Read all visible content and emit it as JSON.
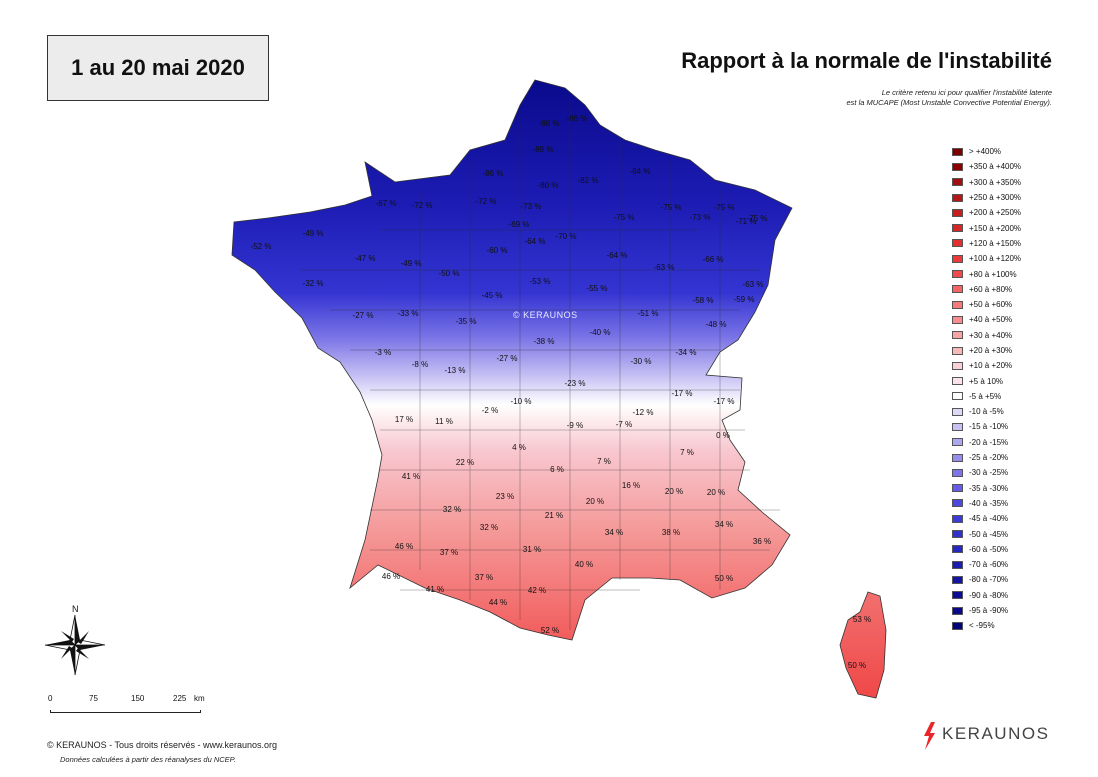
{
  "period_label": "1 au 20 mai 2020",
  "title": "Rapport à la normale de l'instabilité",
  "subtitle_line1": "Le critère retenu ici pour qualifier l'instabilité latente",
  "subtitle_line2": "est la MUCAPE (Most Unstable Convective Potential Energy).",
  "watermark": "© KERAUNOS",
  "legend": [
    {
      "label": "> +400%",
      "color": "#7a0000"
    },
    {
      "label": "+350 à +400%",
      "color": "#8e0000"
    },
    {
      "label": "+300 à +350%",
      "color": "#a30d0d"
    },
    {
      "label": "+250 à +300%",
      "color": "#b51616"
    },
    {
      "label": "+200 à +250%",
      "color": "#c41e1e"
    },
    {
      "label": "+150 à +200%",
      "color": "#d42828"
    },
    {
      "label": "+120 à +150%",
      "color": "#e03030"
    },
    {
      "label": "+100 à +120%",
      "color": "#ea3a3a"
    },
    {
      "label": "+80 à +100%",
      "color": "#f14a4a"
    },
    {
      "label": "+60 à +80%",
      "color": "#f56464"
    },
    {
      "label": "+50 à +60%",
      "color": "#f77a7a"
    },
    {
      "label": "+40 à +50%",
      "color": "#f88d8d"
    },
    {
      "label": "+30 à +40%",
      "color": "#f8a4a4"
    },
    {
      "label": "+20 à +30%",
      "color": "#f8b8b8"
    },
    {
      "label": "+10 à +20%",
      "color": "#fad0d8"
    },
    {
      "label": "+5 à 10%",
      "color": "#fbe2ec"
    },
    {
      "label": "-5 à +5%",
      "color": "#ffffff"
    },
    {
      "label": "-10 à -5%",
      "color": "#dcd8f8"
    },
    {
      "label": "-15 à -10%",
      "color": "#c6c0f4"
    },
    {
      "label": "-20 à -15%",
      "color": "#aea8f0"
    },
    {
      "label": "-25 à -20%",
      "color": "#958eec"
    },
    {
      "label": "-30 à -25%",
      "color": "#7c76e8"
    },
    {
      "label": "-35 à -30%",
      "color": "#645ee4"
    },
    {
      "label": "-40 à -35%",
      "color": "#4c48e0"
    },
    {
      "label": "-45 à -40%",
      "color": "#3c3ad8"
    },
    {
      "label": "-50 à -45%",
      "color": "#3030cc"
    },
    {
      "label": "-60 à -50%",
      "color": "#2626c0"
    },
    {
      "label": "-70 à -60%",
      "color": "#1c1cb2"
    },
    {
      "label": "-80 à -70%",
      "color": "#1414a4"
    },
    {
      "label": "-90 à -80%",
      "color": "#0c0c96"
    },
    {
      "label": "-95 à -90%",
      "color": "#080888"
    },
    {
      "label": "< -95%",
      "color": "#04047a"
    }
  ],
  "map_labels": [
    {
      "text": "-86 %"
    },
    {
      "text": "-86 %"
    },
    {
      "text": "-89 %"
    },
    {
      "text": "-86 %"
    },
    {
      "text": "-80 %"
    },
    {
      "text": "-82 %"
    },
    {
      "text": "-84 %"
    },
    {
      "text": "-67 %"
    },
    {
      "text": "-72 %"
    },
    {
      "text": "-72 %"
    },
    {
      "text": "-73 %"
    },
    {
      "text": "-75 %"
    },
    {
      "text": "-75 %"
    },
    {
      "text": "-75 %"
    },
    {
      "text": "-73 %"
    },
    {
      "text": "-75 %"
    },
    {
      "text": "-71 %"
    },
    {
      "text": "-49 %"
    },
    {
      "text": "-52 %"
    },
    {
      "text": "-69 %"
    },
    {
      "text": "-64 %"
    },
    {
      "text": "-70 %"
    },
    {
      "text": "-60 %"
    },
    {
      "text": "-64 %"
    },
    {
      "text": "-63 %"
    },
    {
      "text": "-66 %"
    },
    {
      "text": "-47 %"
    },
    {
      "text": "-49 %"
    },
    {
      "text": "-50 %"
    },
    {
      "text": "-53 %"
    },
    {
      "text": "-55 %"
    },
    {
      "text": "-63 %"
    },
    {
      "text": "-32 %"
    },
    {
      "text": "-45 %"
    },
    {
      "text": "-58 %"
    },
    {
      "text": "-59 %"
    },
    {
      "text": "-27 %"
    },
    {
      "text": "-33 %"
    },
    {
      "text": "-35 %"
    },
    {
      "text": "-51 %"
    },
    {
      "text": "-48 %"
    },
    {
      "text": "-40 %"
    },
    {
      "text": "-38 %"
    },
    {
      "text": "-27 %"
    },
    {
      "text": "-3 %"
    },
    {
      "text": "-8 %"
    },
    {
      "text": "-13 %"
    },
    {
      "text": "-30 %"
    },
    {
      "text": "-34 %"
    },
    {
      "text": "-23 %"
    },
    {
      "text": "-10 %"
    },
    {
      "text": "-2 %"
    },
    {
      "text": "-17 %"
    },
    {
      "text": "-17 %"
    },
    {
      "text": "17 %"
    },
    {
      "text": "11 %"
    },
    {
      "text": "-9 %"
    },
    {
      "text": "-7 %"
    },
    {
      "text": "-12 %"
    },
    {
      "text": "0 %"
    },
    {
      "text": "4 %"
    },
    {
      "text": "7 %"
    },
    {
      "text": "22 %"
    },
    {
      "text": "6 %"
    },
    {
      "text": "7 %"
    },
    {
      "text": "41 %"
    },
    {
      "text": "16 %"
    },
    {
      "text": "20 %"
    },
    {
      "text": "20 %"
    },
    {
      "text": "23 %"
    },
    {
      "text": "20 %"
    },
    {
      "text": "32 %"
    },
    {
      "text": "21 %"
    },
    {
      "text": "32 %"
    },
    {
      "text": "34 %"
    },
    {
      "text": "38 %"
    },
    {
      "text": "34 %"
    },
    {
      "text": "36 %"
    },
    {
      "text": "46 %"
    },
    {
      "text": "37 %"
    },
    {
      "text": "31 %"
    },
    {
      "text": "40 %"
    },
    {
      "text": "50 %"
    },
    {
      "text": "46 %"
    },
    {
      "text": "37 %"
    },
    {
      "text": "41 %"
    },
    {
      "text": "44 %"
    },
    {
      "text": "42 %"
    },
    {
      "text": "52 %"
    },
    {
      "text": "53 %"
    },
    {
      "text": "50 %"
    }
  ],
  "scale": {
    "t0": "0",
    "t1": "75",
    "t2": "150",
    "t3": "225",
    "unit": "km"
  },
  "north": "N",
  "copyright": "© KERAUNOS - Tous droits réservés - www.keraunos.org",
  "source": "Données calculées à partir des réanalyses du NCEP.",
  "brand": "KERAUNOS"
}
